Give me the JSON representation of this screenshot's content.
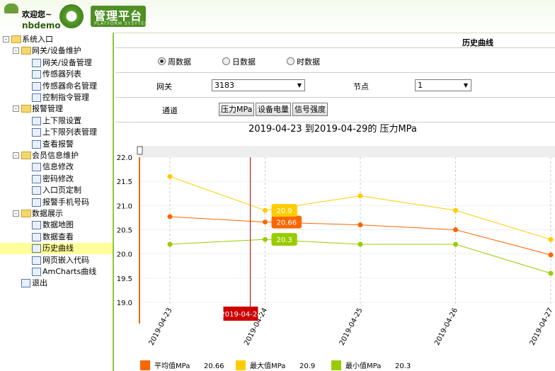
{
  "header": {
    "welcome": "欢迎您~",
    "user": "nbdemo",
    "logo_title": "管理平台",
    "logo_subtitle": "PLATFORM SYSYTEM"
  },
  "menu": {
    "root": "系统入口",
    "groups": [
      {
        "label": "网关/设备维护",
        "items": [
          "网关/设备管理",
          "传感器列表",
          "传感器命名管理",
          "控制指令管理"
        ]
      },
      {
        "label": "报警管理",
        "items": [
          "上下限设置",
          "上下限列表管理",
          "查看报警"
        ]
      },
      {
        "label": "会员信息维护",
        "items": [
          "信息修改",
          "密码修改",
          "入口页定制",
          "报警手机号码"
        ]
      },
      {
        "label": "数据展示",
        "items": [
          "数据地图",
          "数据查看",
          "历史曲线",
          "网页嵌入代码",
          "AmCharts曲线"
        ]
      }
    ],
    "exit": "退出"
  },
  "page_title": "历史曲线",
  "form": {
    "periods": [
      "周数据",
      "日数据",
      "时数据"
    ],
    "gateway_label": "网关",
    "gateway_value": "3183",
    "node_label": "节点",
    "node_value": "1",
    "channel_label": "通道",
    "channels": [
      "压力MPa",
      "设备电量",
      "信号强度"
    ]
  },
  "chart_data": {
    "type": "line",
    "title": "2019-04-23 到2019-04-29的 压力MPa",
    "categories": [
      "2019-04-23",
      "2019-04-24",
      "2019-04-25",
      "2019-04-26",
      "2019-04-27"
    ],
    "series": [
      {
        "name": "平均值MPa",
        "color": "#ff6600",
        "values": [
          20.77,
          20.66,
          20.6,
          20.5,
          19.98
        ]
      },
      {
        "name": "最大值MPa",
        "color": "#ffcc00",
        "values": [
          21.6,
          20.9,
          21.2,
          20.9,
          20.3
        ]
      },
      {
        "name": "最小值MPa",
        "color": "#99cc00",
        "values": [
          20.2,
          20.3,
          20.2,
          20.2,
          19.6
        ]
      }
    ],
    "ylim": [
      19.0,
      22.0
    ],
    "yticks": [
      {
        "value": 19,
        "label": "19.0"
      },
      19.5,
      {
        "value": 20,
        "label": "20.0"
      },
      20.5,
      {
        "value": 21,
        "label": "21.0"
      },
      21.5,
      {
        "value": 22,
        "label": "22.0"
      }
    ],
    "cursor_index": 1
  }
}
